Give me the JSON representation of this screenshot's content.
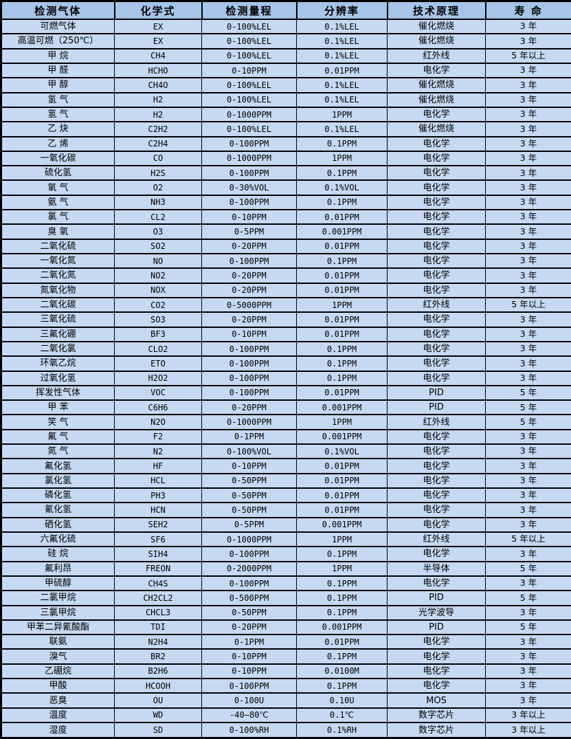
{
  "colors": {
    "header_bg": "#a6c4e7",
    "row_bg": "#c5d9f2",
    "border": "#000000",
    "text": "#000000"
  },
  "table": {
    "headers": [
      "检测气体",
      "化学式",
      "检测量程",
      "分辨率",
      "技术原理",
      "寿 命"
    ],
    "rows": [
      [
        "可燃气体",
        "EX",
        "0-100%LEL",
        "0.1%LEL",
        "催化燃烧",
        "3 年"
      ],
      [
        "高温可燃（250℃）",
        "EX",
        "0-100%LEL",
        "0.1%LEL",
        "催化燃烧",
        "3 年"
      ],
      [
        "甲 烷",
        "CH4",
        "0-100%LEL",
        "0.1%LEL",
        "红外线",
        "5 年以上"
      ],
      [
        "甲 醛",
        "HCHO",
        "0-10PPM",
        "0.01PPM",
        "电化学",
        "3 年"
      ],
      [
        "甲 醇",
        "CH4O",
        "0-100%LEL",
        "0.1%LEL",
        "催化燃烧",
        "3 年"
      ],
      [
        "氢 气",
        "H2",
        "0-100%LEL",
        "0.1%LEL",
        "催化燃烧",
        "3 年"
      ],
      [
        "氢 气",
        "H2",
        "0-1000PPM",
        "1PPM",
        "电化学",
        "3 年"
      ],
      [
        "乙 炔",
        "C2H2",
        "0-100%LEL",
        "0.1%LEL",
        "催化燃烧",
        "3 年"
      ],
      [
        "乙 烯",
        "C2H4",
        "0-100PPM",
        "0.1PPM",
        "电化学",
        "3 年"
      ],
      [
        "一氧化碳",
        "CO",
        "0-1000PPM",
        "1PPM",
        "电化学",
        "3 年"
      ],
      [
        "硫化氢",
        "H2S",
        "0-100PPM",
        "0.1PPM",
        "电化学",
        "3 年"
      ],
      [
        "氧 气",
        "O2",
        "0-30%VOL",
        "0.1%VOL",
        "电化学",
        "3 年"
      ],
      [
        "氨 气",
        "NH3",
        "0-100PPM",
        "0.1PPM",
        "电化学",
        "3 年"
      ],
      [
        "氯 气",
        "CL2",
        "0-10PPM",
        "0.01PPM",
        "电化学",
        "3 年"
      ],
      [
        "臭 氧",
        "O3",
        "0-5PPM",
        "0.001PPM",
        "电化学",
        "3 年"
      ],
      [
        "二氧化硫",
        "SO2",
        "0-20PPM",
        "0.01PPM",
        "电化学",
        "3 年"
      ],
      [
        "一氧化氮",
        "NO",
        "0-100PPM",
        "0.1PPM",
        "电化学",
        "3 年"
      ],
      [
        "二氧化氮",
        "NO2",
        "0-20PPM",
        "0.01PPM",
        "电化学",
        "3 年"
      ],
      [
        "氮氧化物",
        "NOX",
        "0-20PPM",
        "0.01PPM",
        "电化学",
        "3 年"
      ],
      [
        "二氧化碳",
        "CO2",
        "0-5000PPM",
        "1PPM",
        "红外线",
        "5 年以上"
      ],
      [
        "三氧化硫",
        "SO3",
        "0-20PPM",
        "0.01PPM",
        "电化学",
        "3 年"
      ],
      [
        "三氟化硼",
        "BF3",
        "0-10PPM",
        "0.01PPM",
        "电化学",
        "3 年"
      ],
      [
        "二氧化氯",
        "CLO2",
        "0-100PPM",
        "0.1PPM",
        "电化学",
        "3 年"
      ],
      [
        "环氧乙烷",
        "ETO",
        "0-100PPM",
        "0.1PPM",
        "电化学",
        "3 年"
      ],
      [
        "过氧化氢",
        "H2O2",
        "0-100PPM",
        "0.1PPM",
        "电化学",
        "3 年"
      ],
      [
        "挥发性气体",
        "VOC",
        "0-100PPM",
        "0.01PPM",
        "PID",
        "5 年"
      ],
      [
        "甲 苯",
        "C6H6",
        "0-20PPM",
        "0.001PPM",
        "PID",
        "5 年"
      ],
      [
        "笑 气",
        "N2O",
        "0-1000PPM",
        "1PPM",
        "红外线",
        "5 年"
      ],
      [
        "氟 气",
        "F2",
        "0-1PPM",
        "0.001PPM",
        "电化学",
        "3 年"
      ],
      [
        "氮 气",
        "N2",
        "0-100%VOL",
        "0.1%VOL",
        "电化学",
        "3 年"
      ],
      [
        "氟化氢",
        "HF",
        "0-10PPM",
        "0.01PPM",
        "电化学",
        "3 年"
      ],
      [
        "氯化氢",
        "HCL",
        "0-50PPM",
        "0.01PPM",
        "电化学",
        "3 年"
      ],
      [
        "磷化氢",
        "PH3",
        "0-50PPM",
        "0.01PPM",
        "电化学",
        "3 年"
      ],
      [
        "氰化氢",
        "HCN",
        "0-50PPM",
        "0.01PPM",
        "电化学",
        "3 年"
      ],
      [
        "硒化氢",
        "SEH2",
        "0-5PPM",
        "0.001PPM",
        "电化学",
        "3 年"
      ],
      [
        "六氟化硫",
        "SF6",
        "0-1000PPM",
        "1PPM",
        "红外线",
        "5 年以上"
      ],
      [
        "硅 烷",
        "SIH4",
        "0-100PPM",
        "0.1PPM",
        "电化学",
        "3 年"
      ],
      [
        "氟利昂",
        "FREON",
        "0-2000PPM",
        "1PPM",
        "半导体",
        "5 年"
      ],
      [
        "甲硫醇",
        "CH4S",
        "0-100PPM",
        "0.1PPM",
        "电化学",
        "3 年"
      ],
      [
        "二氯甲烷",
        "CH2CL2",
        "0-500PPM",
        "0.1PPM",
        "PID",
        "5 年"
      ],
      [
        "三氯甲烷",
        "CHCL3",
        "0-50PPM",
        "0.1PPM",
        "光学波导",
        "3 年"
      ],
      [
        "甲苯二异氰酸酯",
        "TDI",
        "0-20PPM",
        "0.001PPM",
        "PID",
        "5 年"
      ],
      [
        "联氨",
        "N2H4",
        "0-1PPM",
        "0.01PPM",
        "电化学",
        "3 年"
      ],
      [
        "溴气",
        "BR2",
        "0-10PPM",
        "0.1PPM",
        "电化学",
        "3 年"
      ],
      [
        "乙硼烷",
        "B2H6",
        "0-10PPM",
        "0.0100M",
        "电化学",
        "3 年"
      ],
      [
        "甲酸",
        "HCOOH",
        "0-100PPM",
        "0.1PPM",
        "电化学",
        "3 年"
      ],
      [
        "恶臭",
        "OU",
        "0-100U",
        "0.10U",
        "MOS",
        "3 年"
      ],
      [
        "温度",
        "WD",
        "-40—80℃",
        "0.1℃",
        "数字芯片",
        "3 年以上"
      ],
      [
        "湿度",
        "SD",
        "0-100%RH",
        "0.1%RH",
        "数字芯片",
        "3 年以上"
      ]
    ]
  }
}
